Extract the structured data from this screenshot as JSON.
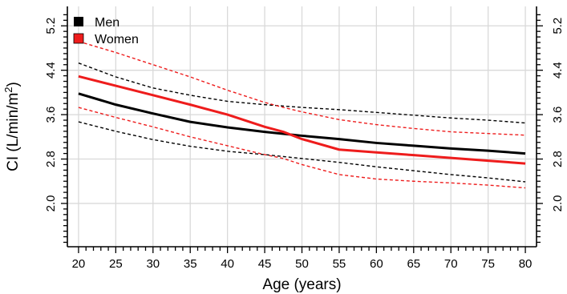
{
  "chart_data": {
    "type": "line",
    "xlabel": "Age (years)",
    "ylabel": {
      "main": "CI (L/min/m",
      "sup": "2",
      "close": ")"
    },
    "xlim": [
      18.5,
      81.5
    ],
    "ylim": [
      1.22,
      5.55
    ],
    "x_ticks": [
      "20",
      "25",
      "30",
      "35",
      "40",
      "45",
      "50",
      "55",
      "60",
      "65",
      "70",
      "75",
      "80"
    ],
    "y_ticks": [
      "2.0",
      "2.8",
      "3.6",
      "4.4",
      "5.2"
    ],
    "legend": {
      "position": "top-left"
    },
    "series": [
      {
        "name": "Men",
        "color": "#000000",
        "x": [
          20,
          25,
          30,
          35,
          40,
          45,
          50,
          55,
          60,
          65,
          70,
          75,
          80
        ],
        "mean": [
          3.98,
          3.78,
          3.62,
          3.47,
          3.37,
          3.29,
          3.22,
          3.16,
          3.09,
          3.04,
          2.99,
          2.95,
          2.9
        ],
        "upper": [
          4.53,
          4.28,
          4.08,
          3.95,
          3.84,
          3.78,
          3.73,
          3.69,
          3.64,
          3.59,
          3.54,
          3.5,
          3.45
        ],
        "lower": [
          3.47,
          3.3,
          3.15,
          3.03,
          2.94,
          2.88,
          2.81,
          2.74,
          2.66,
          2.59,
          2.52,
          2.46,
          2.39
        ]
      },
      {
        "name": "Women",
        "color": "#ee1c1c",
        "x": [
          20,
          25,
          30,
          35,
          40,
          45,
          47.5,
          50,
          55,
          60,
          65,
          70,
          75,
          80
        ],
        "mean": [
          4.29,
          4.12,
          3.95,
          3.78,
          3.6,
          3.38,
          3.29,
          3.16,
          2.97,
          2.92,
          2.87,
          2.82,
          2.77,
          2.72
        ],
        "upper": [
          4.92,
          4.72,
          4.5,
          4.28,
          4.04,
          3.82,
          3.73,
          3.65,
          3.51,
          3.42,
          3.35,
          3.29,
          3.26,
          3.23
        ],
        "lower": [
          3.73,
          3.55,
          3.38,
          3.2,
          3.04,
          2.88,
          2.81,
          2.7,
          2.52,
          2.44,
          2.4,
          2.37,
          2.33,
          2.28
        ]
      }
    ]
  }
}
